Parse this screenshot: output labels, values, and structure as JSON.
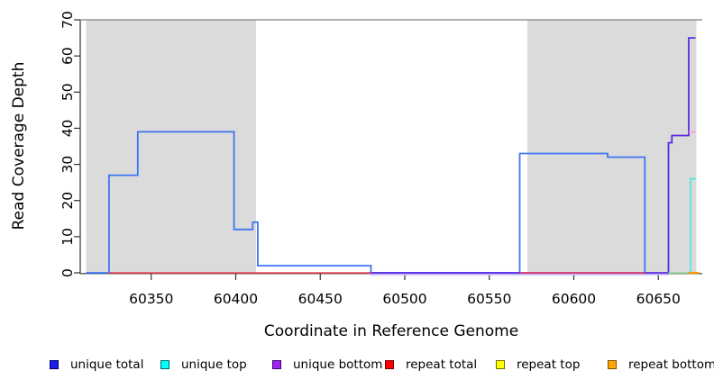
{
  "chart_data": {
    "type": "line",
    "subtype": "step-coverage-plot",
    "title": "",
    "xlabel": "Coordinate in Reference Genome",
    "ylabel": "Read Coverage Depth",
    "xlim": [
      60308,
      60676
    ],
    "ylim": [
      0,
      70
    ],
    "x_ticks": [
      60350,
      60400,
      60450,
      60500,
      60550,
      60600,
      60650
    ],
    "y_ticks": [
      0,
      10,
      20,
      30,
      40,
      50,
      60,
      70
    ],
    "grid": false,
    "legend_position": "bottom",
    "background_color": "#ffffff",
    "shaded_region_color": "#dbdbdb",
    "shaded_regions": [
      {
        "x0": 60311.5,
        "x1": 60412
      },
      {
        "x0": 60572.5,
        "x1": 60672.5
      }
    ],
    "series": [
      {
        "name": "top-boundary-line",
        "color": "#7f7f7f",
        "w": 1.2,
        "points": [
          [
            60308,
            70
          ],
          [
            60676,
            70
          ]
        ]
      },
      {
        "name": "unique total",
        "color": "#3e76f2",
        "w": 1.8,
        "points": [
          [
            60311.5,
            0
          ],
          [
            60325,
            0
          ],
          [
            60325,
            27
          ],
          [
            60342,
            27
          ],
          [
            60342,
            39
          ],
          [
            60399,
            39
          ],
          [
            60399,
            12
          ],
          [
            60410,
            12
          ],
          [
            60410,
            14
          ],
          [
            60413,
            14
          ],
          [
            60413,
            2
          ],
          [
            60480,
            2
          ],
          [
            60480,
            0
          ],
          [
            60568,
            0
          ],
          [
            60568,
            33
          ],
          [
            60620,
            33
          ],
          [
            60620,
            32
          ],
          [
            60642,
            32
          ],
          [
            60642,
            0
          ]
        ]
      },
      {
        "name": "baseline-lavender",
        "color": "#c7b6f7",
        "w": 2.2,
        "points": [
          [
            60479,
            -0.4
          ],
          [
            60656,
            -0.4
          ]
        ]
      },
      {
        "name": "unique bottom",
        "color": "#5b2be0",
        "w": 1.8,
        "points": [
          [
            60479,
            0
          ],
          [
            60656,
            0
          ],
          [
            60656,
            36
          ],
          [
            60658,
            36
          ],
          [
            60658,
            38
          ],
          [
            60668,
            38
          ],
          [
            60668,
            65
          ],
          [
            60672,
            65
          ]
        ]
      },
      {
        "name": "repeat total",
        "color": "#ee4450",
        "w": 1.6,
        "segments": [
          [
            [
              60325,
              0
            ],
            [
              60480,
              0
            ]
          ],
          [
            [
              60568,
              0
            ],
            [
              60642,
              0
            ]
          ]
        ]
      },
      {
        "name": "baseline-green",
        "color": "#9bda9b",
        "w": 1.8,
        "points": [
          [
            60656,
            0
          ],
          [
            60668,
            0
          ]
        ]
      },
      {
        "name": "pink-mark",
        "color": "#f09ae6",
        "w": 1.8,
        "points": [
          [
            60668,
            39
          ],
          [
            60672,
            39
          ]
        ]
      },
      {
        "name": "unique top",
        "color": "#45e9e4",
        "w": 1.6,
        "points": [
          [
            60669,
            0
          ],
          [
            60669,
            26
          ],
          [
            60672.5,
            26
          ]
        ]
      },
      {
        "name": "repeat bottom",
        "color": "#ff9700",
        "w": 2.2,
        "points": [
          [
            60668,
            0
          ],
          [
            60674,
            0
          ]
        ]
      }
    ]
  },
  "legend": {
    "items": [
      {
        "label": "unique total",
        "fill": "#1c1cf0",
        "border": "#000060"
      },
      {
        "label": "unique top",
        "fill": "#00ffff",
        "border": "#006868"
      },
      {
        "label": "unique bottom",
        "fill": "#a122f2",
        "border": "#3d0070"
      },
      {
        "label": "repeat total",
        "fill": "#ff0000",
        "border": "#700000"
      },
      {
        "label": "repeat top",
        "fill": "#ffff00",
        "border": "#6e6e00"
      },
      {
        "label": "repeat bottom",
        "fill": "#ffa500",
        "border": "#7a5000"
      }
    ]
  }
}
